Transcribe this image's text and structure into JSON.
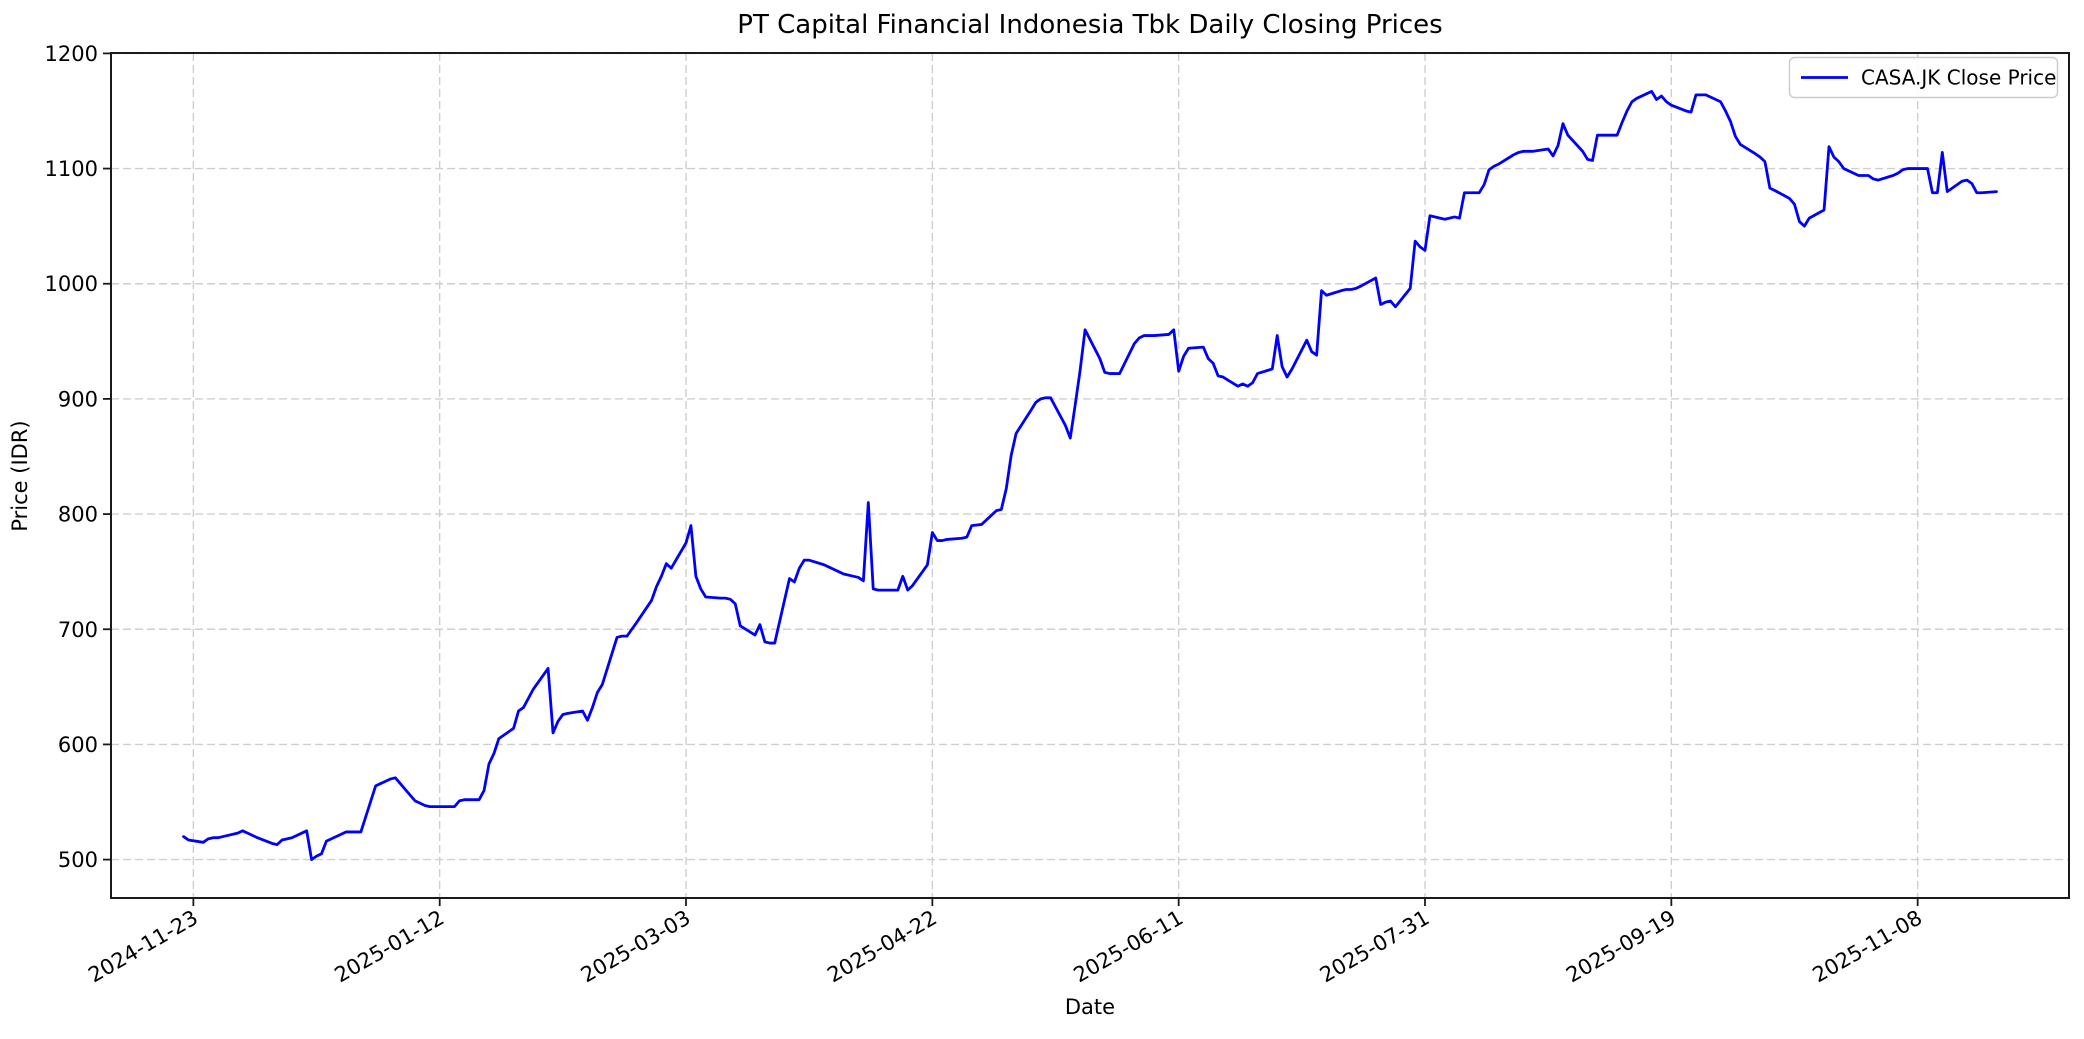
{
  "chart_data": {
    "type": "line",
    "title": "PT Capital Financial Indonesia Tbk Daily Closing Prices",
    "xlabel": "Date",
    "ylabel": "Price (IDR)",
    "grid": true,
    "grid_style": "dashed",
    "legend_position": "upper right",
    "line_color": "#0000ff",
    "grid_color": "#cfcfcf",
    "axis_color": "#1a1a1a",
    "ylim": [
      466,
      1201
    ],
    "yticks": [
      500,
      600,
      700,
      800,
      900,
      1000,
      1100,
      1200
    ],
    "xticks": [
      "2024-11-23",
      "2025-01-12",
      "2025-03-03",
      "2025-04-22",
      "2025-06-11",
      "2025-07-31",
      "2025-09-19",
      "2025-11-08"
    ],
    "series": [
      {
        "name": "CASA.JK Close Price",
        "dates": [
          "2024-11-21",
          "2024-11-22",
          "2024-11-25",
          "2024-11-26",
          "2024-11-27",
          "2024-11-28",
          "2024-11-29",
          "2024-12-02",
          "2024-12-03",
          "2024-12-04",
          "2024-12-05",
          "2024-12-06",
          "2024-12-09",
          "2024-12-10",
          "2024-12-11",
          "2024-12-12",
          "2024-12-13",
          "2024-12-16",
          "2024-12-17",
          "2024-12-18",
          "2024-12-19",
          "2024-12-20",
          "2024-12-23",
          "2024-12-24",
          "2024-12-27",
          "2024-12-30",
          "2024-12-31",
          "2025-01-02",
          "2025-01-03",
          "2025-01-06",
          "2025-01-07",
          "2025-01-08",
          "2025-01-09",
          "2025-01-10",
          "2025-01-13",
          "2025-01-14",
          "2025-01-15",
          "2025-01-16",
          "2025-01-17",
          "2025-01-20",
          "2025-01-21",
          "2025-01-22",
          "2025-01-23",
          "2025-01-24",
          "2025-01-27",
          "2025-01-28",
          "2025-01-29",
          "2025-01-30",
          "2025-01-31",
          "2025-02-03",
          "2025-02-04",
          "2025-02-05",
          "2025-02-06",
          "2025-02-07",
          "2025-02-10",
          "2025-02-11",
          "2025-02-12",
          "2025-02-13",
          "2025-02-14",
          "2025-02-17",
          "2025-02-18",
          "2025-02-19",
          "2025-02-20",
          "2025-02-21",
          "2025-02-24",
          "2025-02-25",
          "2025-02-26",
          "2025-02-27",
          "2025-02-28",
          "2025-03-03",
          "2025-03-04",
          "2025-03-05",
          "2025-03-06",
          "2025-03-07",
          "2025-03-10",
          "2025-03-11",
          "2025-03-12",
          "2025-03-13",
          "2025-03-14",
          "2025-03-17",
          "2025-03-18",
          "2025-03-19",
          "2025-03-20",
          "2025-03-21",
          "2025-03-24",
          "2025-03-25",
          "2025-03-26",
          "2025-03-27",
          "2025-03-28",
          "2025-03-31",
          "2025-04-01",
          "2025-04-02",
          "2025-04-03",
          "2025-04-04",
          "2025-04-07",
          "2025-04-08",
          "2025-04-09",
          "2025-04-10",
          "2025-04-11",
          "2025-04-14",
          "2025-04-15",
          "2025-04-16",
          "2025-04-17",
          "2025-04-18",
          "2025-04-21",
          "2025-04-22",
          "2025-04-23",
          "2025-04-24",
          "2025-04-25",
          "2025-04-28",
          "2025-04-29",
          "2025-04-30",
          "2025-05-02",
          "2025-05-05",
          "2025-05-06",
          "2025-05-07",
          "2025-05-08",
          "2025-05-09",
          "2025-05-12",
          "2025-05-13",
          "2025-05-14",
          "2025-05-15",
          "2025-05-16",
          "2025-05-19",
          "2025-05-20",
          "2025-05-21",
          "2025-05-22",
          "2025-05-23",
          "2025-05-26",
          "2025-05-27",
          "2025-05-28",
          "2025-05-29",
          "2025-05-30",
          "2025-06-02",
          "2025-06-03",
          "2025-06-04",
          "2025-06-05",
          "2025-06-06",
          "2025-06-09",
          "2025-06-10",
          "2025-06-11",
          "2025-06-12",
          "2025-06-13",
          "2025-06-16",
          "2025-06-17",
          "2025-06-18",
          "2025-06-19",
          "2025-06-20",
          "2025-06-23",
          "2025-06-24",
          "2025-06-25",
          "2025-06-26",
          "2025-06-27",
          "2025-06-30",
          "2025-07-01",
          "2025-07-02",
          "2025-07-03",
          "2025-07-04",
          "2025-07-07",
          "2025-07-08",
          "2025-07-09",
          "2025-07-10",
          "2025-07-11",
          "2025-07-14",
          "2025-07-15",
          "2025-07-16",
          "2025-07-17",
          "2025-07-18",
          "2025-07-21",
          "2025-07-22",
          "2025-07-23",
          "2025-07-24",
          "2025-07-25",
          "2025-07-28",
          "2025-07-29",
          "2025-07-30",
          "2025-07-31",
          "2025-08-01",
          "2025-08-04",
          "2025-08-05",
          "2025-08-06",
          "2025-08-07",
          "2025-08-08",
          "2025-08-11",
          "2025-08-12",
          "2025-08-13",
          "2025-08-14",
          "2025-08-15",
          "2025-08-18",
          "2025-08-19",
          "2025-08-20",
          "2025-08-21",
          "2025-08-22",
          "2025-08-25",
          "2025-08-26",
          "2025-08-27",
          "2025-08-28",
          "2025-08-29",
          "2025-09-01",
          "2025-09-02",
          "2025-09-03",
          "2025-09-04",
          "2025-09-05",
          "2025-09-08",
          "2025-09-09",
          "2025-09-10",
          "2025-09-11",
          "2025-09-12",
          "2025-09-15",
          "2025-09-16",
          "2025-09-17",
          "2025-09-18",
          "2025-09-19",
          "2025-09-22",
          "2025-09-23",
          "2025-09-24",
          "2025-09-25",
          "2025-09-26",
          "2025-09-29",
          "2025-09-30",
          "2025-10-01",
          "2025-10-02",
          "2025-10-03",
          "2025-10-06",
          "2025-10-07",
          "2025-10-08",
          "2025-10-09",
          "2025-10-10",
          "2025-10-13",
          "2025-10-14",
          "2025-10-15",
          "2025-10-16",
          "2025-10-17",
          "2025-10-20",
          "2025-10-21",
          "2025-10-22",
          "2025-10-23",
          "2025-10-24",
          "2025-10-27",
          "2025-10-28",
          "2025-10-29",
          "2025-10-30",
          "2025-10-31",
          "2025-11-03",
          "2025-11-04",
          "2025-11-05",
          "2025-11-06",
          "2025-11-07",
          "2025-11-10",
          "2025-11-11",
          "2025-11-12",
          "2025-11-13",
          "2025-11-14",
          "2025-11-17",
          "2025-11-18",
          "2025-11-19",
          "2025-11-20",
          "2025-11-21",
          "2025-11-24"
        ],
        "values": [
          520,
          517,
          515,
          518,
          519,
          519,
          520,
          523,
          525,
          523,
          521,
          519,
          514,
          513,
          517,
          518,
          519,
          525,
          500,
          503,
          505,
          516,
          522,
          524,
          524,
          564,
          566,
          570,
          571,
          556,
          551,
          549,
          547,
          546,
          546,
          546,
          546,
          551,
          552,
          552,
          560,
          583,
          592,
          605,
          614,
          629,
          632,
          640,
          648,
          666,
          610,
          620,
          626,
          627,
          629,
          621,
          632,
          645,
          652,
          693,
          694,
          694,
          700,
          706,
          725,
          737,
          746,
          757,
          753,
          775,
          790,
          746,
          735,
          728,
          727,
          727,
          726,
          722,
          703,
          695,
          704,
          689,
          688,
          688,
          744,
          741,
          753,
          760,
          760,
          756,
          754,
          752,
          750,
          748,
          745,
          742,
          810,
          735,
          734,
          734,
          734,
          746,
          734,
          738,
          756,
          784,
          777,
          777,
          778,
          779,
          780,
          790,
          791,
          803,
          804,
          822,
          851,
          870,
          890,
          897,
          900,
          901,
          901,
          877,
          866,
          895,
          925,
          960,
          935,
          923,
          922,
          922,
          922,
          948,
          953,
          955,
          955,
          955,
          956,
          960,
          924,
          937,
          944,
          945,
          935,
          931,
          920,
          919,
          911,
          913,
          911,
          914,
          922,
          926,
          955,
          928,
          919,
          926,
          951,
          941,
          938,
          994,
          990,
          994,
          995,
          995,
          996,
          998,
          1005,
          982,
          984,
          985,
          980,
          996,
          1037,
          1032,
          1029,
          1059,
          1056,
          1057,
          1058,
          1057,
          1079,
          1079,
          1086,
          1099,
          1102,
          1104,
          1112,
          1114,
          1115,
          1115,
          1115,
          1117,
          1111,
          1120,
          1139,
          1129,
          1115,
          1108,
          1107,
          1129,
          1129,
          1129,
          1140,
          1150,
          1158,
          1161,
          1167,
          1160,
          1163,
          1158,
          1155,
          1150,
          1149,
          1164,
          1164,
          1164,
          1158,
          1150,
          1141,
          1128,
          1121,
          1113,
          1110,
          1106,
          1083,
          1081,
          1074,
          1069,
          1054,
          1050,
          1057,
          1064,
          1119,
          1110,
          1106,
          1100,
          1094,
          1094,
          1094,
          1091,
          1090,
          1094,
          1096,
          1099,
          1100,
          1100,
          1100,
          1079,
          1079,
          1114,
          1080,
          1089,
          1090,
          1087,
          1079,
          1079,
          1080
        ]
      }
    ]
  }
}
